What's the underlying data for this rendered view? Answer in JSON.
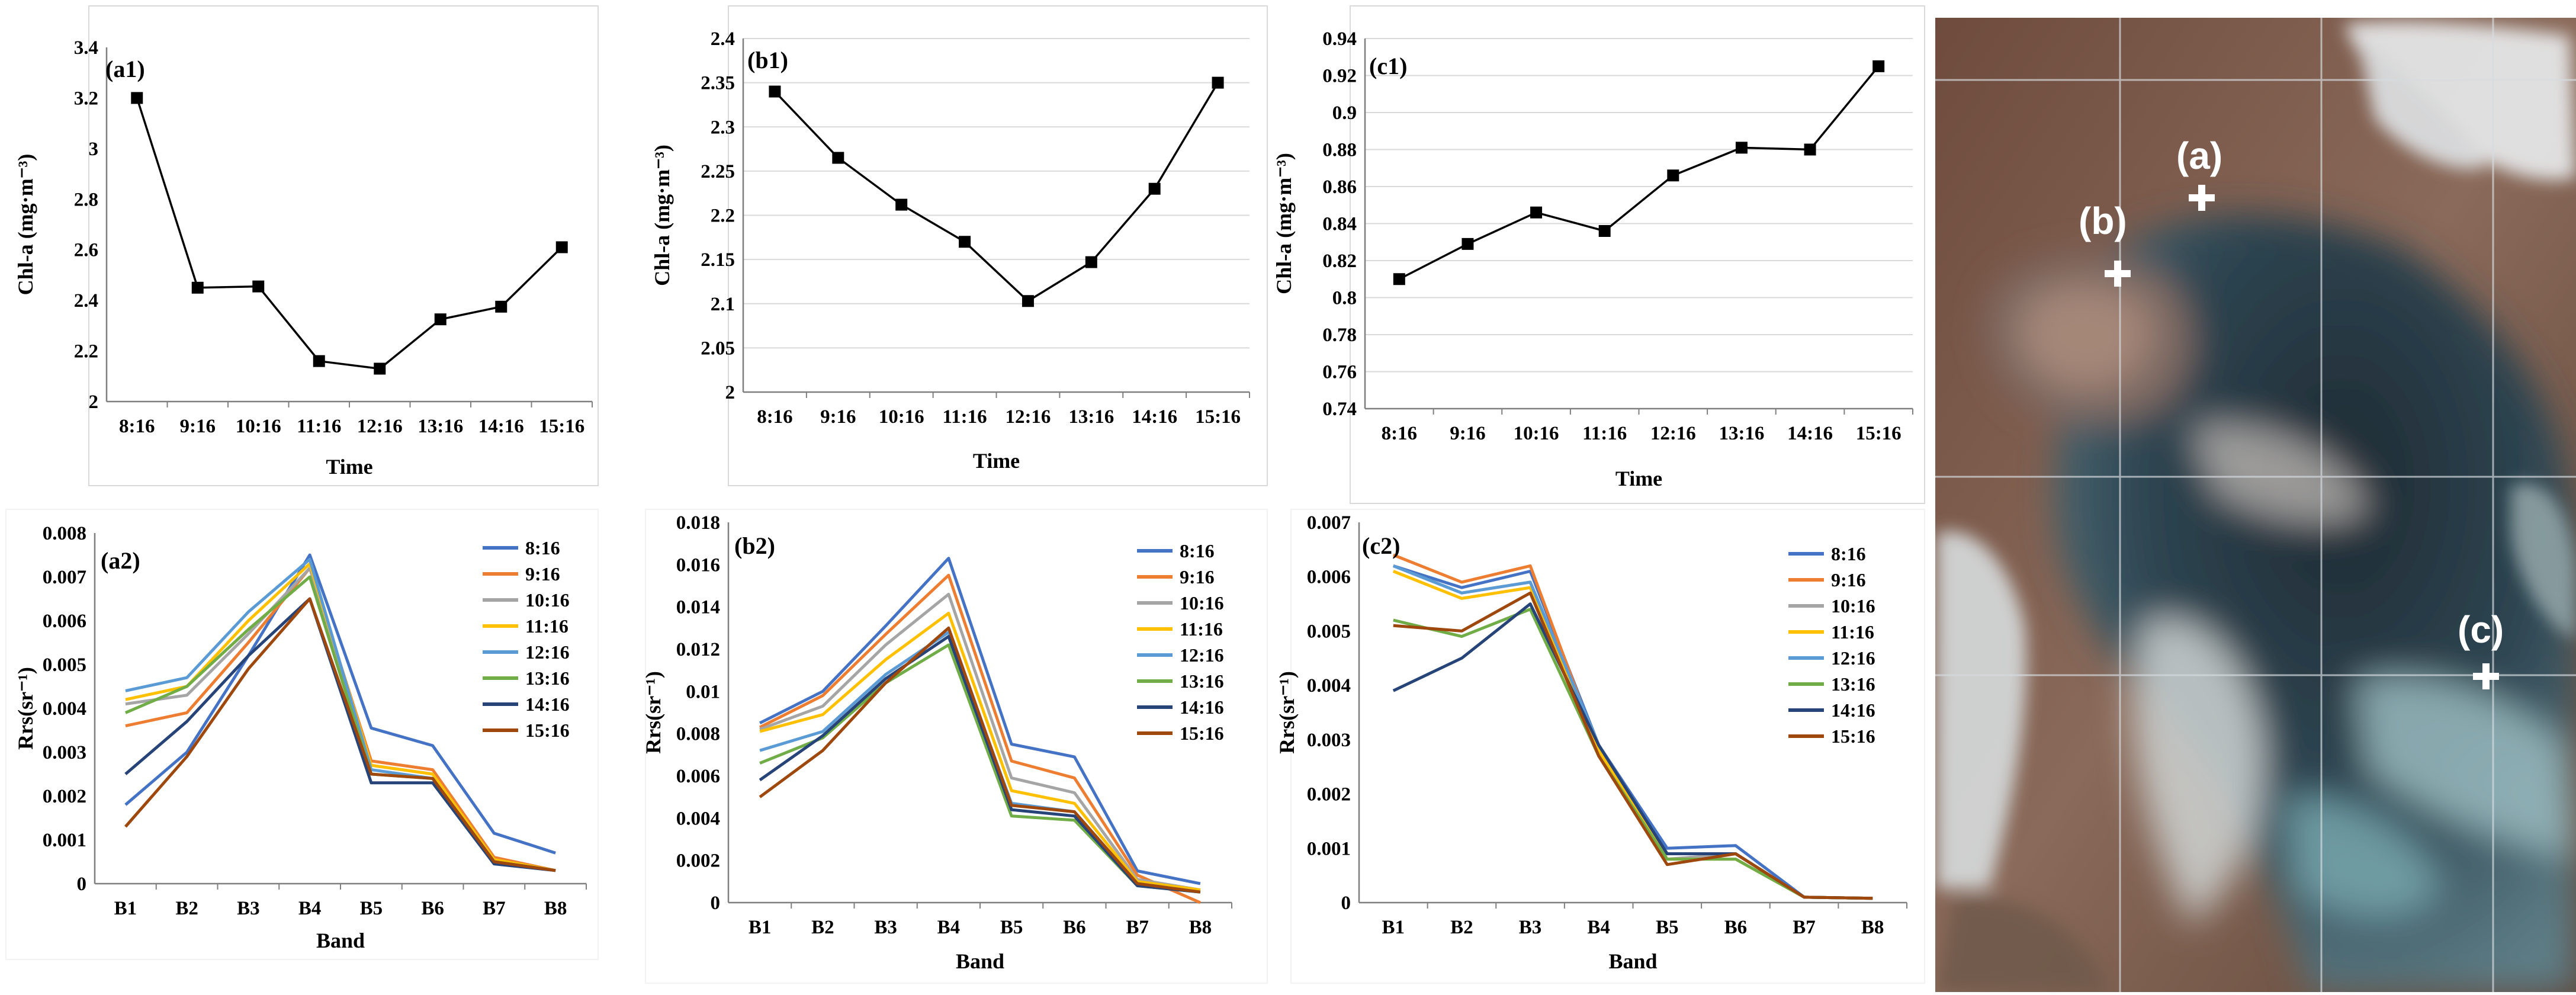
{
  "colors": {
    "axis": "#7f7f7f",
    "grid": "#d9d9d9",
    "line": "#000000",
    "series": [
      "#4472c4",
      "#ed7d31",
      "#a5a5a5",
      "#ffc000",
      "#5b9bd5",
      "#70ad47",
      "#264478",
      "#9e480e"
    ]
  },
  "map": {
    "icons": [
      "cross-marker-icon"
    ],
    "markers": [
      {
        "id": "a",
        "label": "(a)"
      },
      {
        "id": "b",
        "label": "(b)"
      },
      {
        "id": "c",
        "label": "(c)"
      }
    ]
  },
  "chart_data": [
    {
      "id": "a1",
      "type": "line",
      "panel_label": "(a1)",
      "categories": [
        "8:16",
        "9:16",
        "10:16",
        "11:16",
        "12:16",
        "13:16",
        "14:16",
        "15:16"
      ],
      "series": [
        {
          "values": [
            3.2,
            2.45,
            2.455,
            2.16,
            2.13,
            2.325,
            2.375,
            2.61
          ]
        }
      ],
      "xlabel": "Time",
      "ylabel": "Chl-a (mg·m⁻³)",
      "ylim": [
        2,
        3.4
      ],
      "yticks": [
        "2",
        "2.2",
        "2.4",
        "2.6",
        "2.8",
        "3",
        "3.2",
        "3.4"
      ],
      "grid": false,
      "marker": "square"
    },
    {
      "id": "b1",
      "type": "line",
      "panel_label": "(b1)",
      "categories": [
        "8:16",
        "9:16",
        "10:16",
        "11:16",
        "12:16",
        "13:16",
        "14:16",
        "15:16"
      ],
      "series": [
        {
          "values": [
            2.34,
            2.265,
            2.212,
            2.17,
            2.103,
            2.147,
            2.23,
            2.35
          ]
        }
      ],
      "xlabel": "Time",
      "ylabel": "Chl-a (mg·m⁻³)",
      "ylim": [
        2,
        2.4
      ],
      "yticks": [
        "2",
        "2.05",
        "2.1",
        "2.15",
        "2.2",
        "2.25",
        "2.3",
        "2.35",
        "2.4"
      ],
      "grid": true,
      "marker": "square"
    },
    {
      "id": "c1",
      "type": "line",
      "panel_label": "(c1)",
      "categories": [
        "8:16",
        "9:16",
        "10:16",
        "11:16",
        "12:16",
        "13:16",
        "14:16",
        "15:16"
      ],
      "series": [
        {
          "values": [
            0.81,
            0.829,
            0.846,
            0.836,
            0.866,
            0.881,
            0.88,
            0.925
          ]
        }
      ],
      "xlabel": "Time",
      "ylabel": "Chl-a (mg·m⁻³)",
      "ylim": [
        0.74,
        0.94
      ],
      "yticks": [
        "0.74",
        "0.76",
        "0.78",
        "0.8",
        "0.82",
        "0.84",
        "0.86",
        "0.88",
        "0.9",
        "0.92",
        "0.94"
      ],
      "grid": true,
      "marker": "square"
    },
    {
      "id": "a2",
      "type": "line",
      "panel_label": "(a2)",
      "categories": [
        "B1",
        "B2",
        "B3",
        "B4",
        "B5",
        "B6",
        "B7",
        "B8"
      ],
      "series": [
        {
          "name": "8:16",
          "values": [
            0.0018,
            0.003,
            0.0052,
            0.0075,
            0.00355,
            0.00315,
            0.00115,
            0.0007
          ]
        },
        {
          "name": "9:16",
          "values": [
            0.0036,
            0.0039,
            0.0055,
            0.0072,
            0.0028,
            0.0026,
            0.0006,
            0.0003
          ]
        },
        {
          "name": "10:16",
          "values": [
            0.0041,
            0.0043,
            0.0057,
            0.0072,
            0.0027,
            0.0025,
            0.00055,
            0.0003
          ]
        },
        {
          "name": "11:16",
          "values": [
            0.0042,
            0.0045,
            0.006,
            0.0073,
            0.0027,
            0.0025,
            0.00055,
            0.0003
          ]
        },
        {
          "name": "12:16",
          "values": [
            0.0044,
            0.0047,
            0.0062,
            0.0074,
            0.0026,
            0.0024,
            0.0005,
            0.0003
          ]
        },
        {
          "name": "13:16",
          "values": [
            0.0039,
            0.0045,
            0.0058,
            0.007,
            0.0025,
            0.0024,
            0.0005,
            0.0003
          ]
        },
        {
          "name": "14:16",
          "values": [
            0.0025,
            0.0037,
            0.0052,
            0.0065,
            0.0023,
            0.0023,
            0.00045,
            0.0003
          ]
        },
        {
          "name": "15:16",
          "values": [
            0.0013,
            0.0029,
            0.0049,
            0.0065,
            0.0025,
            0.0024,
            0.0005,
            0.0003
          ]
        }
      ],
      "xlabel": "Band",
      "ylabel": "Rrs(sr⁻¹)",
      "ylim": [
        0,
        0.008
      ],
      "yticks": [
        "0",
        "0.001",
        "0.002",
        "0.003",
        "0.004",
        "0.005",
        "0.006",
        "0.007",
        "0.008"
      ],
      "grid": false,
      "legend": "right"
    },
    {
      "id": "b2",
      "type": "line",
      "panel_label": "(b2)",
      "categories": [
        "B1",
        "B2",
        "B3",
        "B4",
        "B5",
        "B6",
        "B7",
        "B8"
      ],
      "series": [
        {
          "name": "8:16",
          "values": [
            0.0085,
            0.01,
            0.0131,
            0.0163,
            0.0075,
            0.0069,
            0.0015,
            0.0009
          ]
        },
        {
          "name": "9:16",
          "values": [
            0.0083,
            0.0098,
            0.0127,
            0.0155,
            0.0067,
            0.0059,
            0.0013,
            0.0
          ]
        },
        {
          "name": "10:16",
          "values": [
            0.0082,
            0.0093,
            0.0122,
            0.0146,
            0.0059,
            0.0052,
            0.0011,
            0.0006
          ]
        },
        {
          "name": "11:16",
          "values": [
            0.0081,
            0.0089,
            0.0115,
            0.0137,
            0.0053,
            0.0047,
            0.001,
            0.0006
          ]
        },
        {
          "name": "12:16",
          "values": [
            0.0072,
            0.0081,
            0.0108,
            0.0128,
            0.0047,
            0.0043,
            0.0009,
            0.0005
          ]
        },
        {
          "name": "13:16",
          "values": [
            0.0066,
            0.0078,
            0.0104,
            0.0122,
            0.0041,
            0.0039,
            0.0008,
            0.0005
          ]
        },
        {
          "name": "14:16",
          "values": [
            0.0058,
            0.0079,
            0.0106,
            0.0126,
            0.0044,
            0.0041,
            0.0008,
            0.0005
          ]
        },
        {
          "name": "15:16",
          "values": [
            0.005,
            0.0072,
            0.0104,
            0.013,
            0.0046,
            0.0043,
            0.0009,
            0.0005
          ]
        }
      ],
      "xlabel": "Band",
      "ylabel": "Rrs(sr⁻¹)",
      "ylim": [
        0,
        0.018
      ],
      "yticks": [
        "0",
        "0.002",
        "0.004",
        "0.006",
        "0.008",
        "0.01",
        "0.012",
        "0.014",
        "0.016",
        "0.018"
      ],
      "grid": false,
      "legend": "right"
    },
    {
      "id": "c2",
      "type": "line",
      "panel_label": "(c2)",
      "categories": [
        "B1",
        "B2",
        "B3",
        "B4",
        "B5",
        "B6",
        "B7",
        "B8"
      ],
      "series": [
        {
          "name": "8:16",
          "values": [
            0.0062,
            0.0058,
            0.0061,
            0.0029,
            0.001,
            0.00105,
            0.0001,
            8e-05
          ]
        },
        {
          "name": "9:16",
          "values": [
            0.0064,
            0.0059,
            0.0062,
            0.0028,
            0.0009,
            0.0009,
            0.0001,
            8e-05
          ]
        },
        {
          "name": "10:16",
          "values": [
            0.0062,
            0.0057,
            0.0059,
            0.0028,
            0.0008,
            0.0009,
            0.0001,
            8e-05
          ]
        },
        {
          "name": "11:16",
          "values": [
            0.0061,
            0.0056,
            0.0058,
            0.0028,
            0.0008,
            0.0008,
            0.0001,
            8e-05
          ]
        },
        {
          "name": "12:16",
          "values": [
            0.0062,
            0.0057,
            0.0059,
            0.0029,
            0.0009,
            0.0009,
            0.0001,
            8e-05
          ]
        },
        {
          "name": "13:16",
          "values": [
            0.0052,
            0.0049,
            0.0054,
            0.0027,
            0.0008,
            0.0008,
            0.0001,
            8e-05
          ]
        },
        {
          "name": "14:16",
          "values": [
            0.0039,
            0.0045,
            0.0055,
            0.0029,
            0.0009,
            0.0009,
            0.0001,
            8e-05
          ]
        },
        {
          "name": "15:16",
          "values": [
            0.0051,
            0.005,
            0.0057,
            0.0027,
            0.0007,
            0.0009,
            0.0001,
            8e-05
          ]
        }
      ],
      "xlabel": "Band",
      "ylabel": "Rrs(sr⁻¹)",
      "ylim": [
        0,
        0.007
      ],
      "yticks": [
        "0",
        "0.001",
        "0.002",
        "0.003",
        "0.004",
        "0.005",
        "0.006",
        "0.007"
      ],
      "grid": false,
      "legend": "right"
    }
  ]
}
